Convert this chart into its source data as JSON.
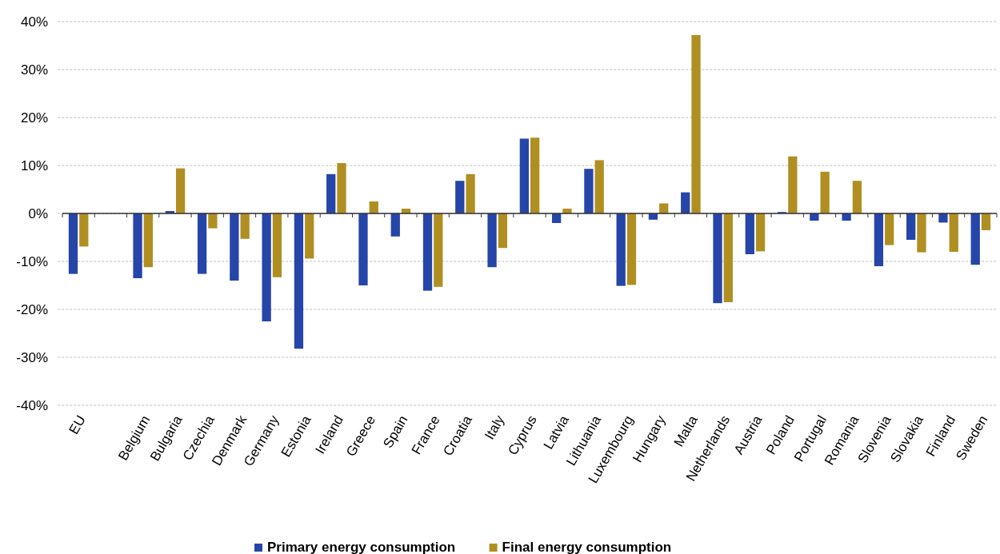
{
  "chart_data": {
    "type": "bar",
    "categories": [
      "EU",
      null,
      "Belgium",
      "Bulgaria",
      "Czechia",
      "Denmark",
      "Germany",
      "Estonia",
      "Ireland",
      "Greece",
      "Spain",
      "France",
      "Croatia",
      "Italy",
      "Cyprus",
      "Latvia",
      "Lithuania",
      "Luxembourg",
      "Hungary",
      "Malta",
      "Netherlands",
      "Austria",
      "Poland",
      "Portugal",
      "Romania",
      "Slovenia",
      "Slovakia",
      "Finland",
      "Sweden"
    ],
    "series": [
      {
        "name": "Primary energy consumption",
        "color": "#2645a8",
        "values": [
          -12.6,
          null,
          -13.5,
          0.5,
          -12.6,
          -14,
          -22.5,
          -28.2,
          8.2,
          -15,
          -4.8,
          -16.1,
          6.8,
          -11.2,
          15.6,
          -2,
          9.3,
          -15.1,
          -1.3,
          4.4,
          -18.7,
          -8.5,
          0.3,
          -1.5,
          -1.5,
          -11,
          -5.5,
          -1.9,
          -10.7
        ]
      },
      {
        "name": "Final energy consumption",
        "color": "#b08f22",
        "values": [
          -6.9,
          null,
          -11.2,
          9.4,
          -3.1,
          -5.3,
          -13.3,
          -9.4,
          10.5,
          2.5,
          1,
          -15.3,
          8.2,
          -7.2,
          15.8,
          1,
          11.1,
          -14.9,
          2.1,
          37.2,
          -18.5,
          -7.9,
          11.9,
          8.7,
          6.8,
          -6.6,
          -8.1,
          -8,
          -3.5
        ]
      }
    ],
    "ylim": [
      -40,
      40
    ],
    "yticks": [
      {
        "value": -40,
        "label": "-40%"
      },
      {
        "value": -30,
        "label": "-30%"
      },
      {
        "value": -20,
        "label": "-20%"
      },
      {
        "value": -10,
        "label": "-10%"
      },
      {
        "value": 0,
        "label": "0%"
      },
      {
        "value": 10,
        "label": "10%"
      },
      {
        "value": 20,
        "label": "20%"
      },
      {
        "value": 30,
        "label": "30%"
      },
      {
        "value": 40,
        "label": "40%"
      }
    ],
    "grid": "y",
    "legend": "bottom"
  }
}
